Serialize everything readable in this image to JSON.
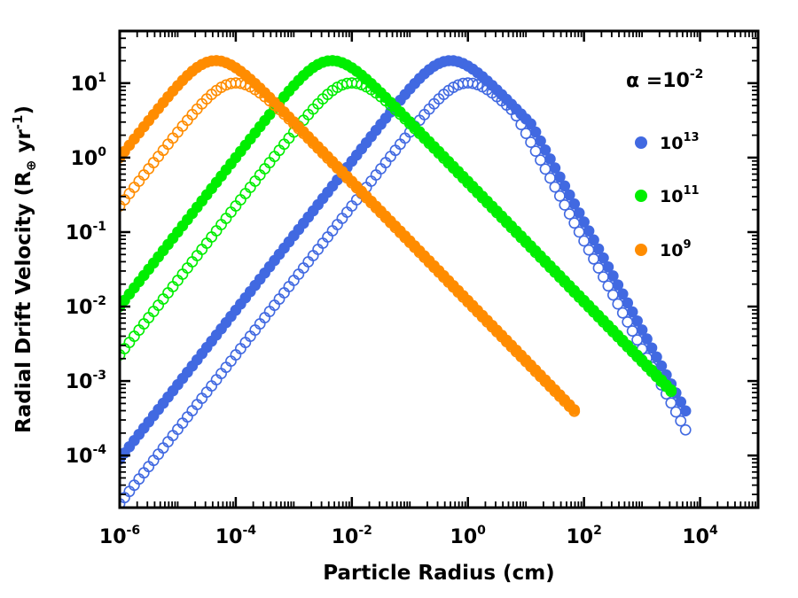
{
  "chart_data": {
    "type": "scatter",
    "xlabel": "Particle Radius (cm)",
    "ylabel_main": "Radial Drift Velocity (R",
    "ylabel_sub": "⊕",
    "ylabel_unit": " yr",
    "ylabel_exp": "-1",
    "ylabel_close": ")",
    "xscale": "log",
    "yscale": "log",
    "xlim_log10": [
      -6,
      5
    ],
    "ylim_log10": [
      -4.7,
      1.7
    ],
    "x_ticks": [
      {
        "base": "10",
        "exp": "-6",
        "log": -6
      },
      {
        "base": "10",
        "exp": "-4",
        "log": -4
      },
      {
        "base": "10",
        "exp": "-2",
        "log": -2
      },
      {
        "base": "10",
        "exp": "0",
        "log": 0
      },
      {
        "base": "10",
        "exp": "2",
        "log": 2
      },
      {
        "base": "10",
        "exp": "4",
        "log": 4
      }
    ],
    "y_ticks": [
      {
        "base": "10",
        "exp": "-4",
        "log": -4
      },
      {
        "base": "10",
        "exp": "-3",
        "log": -3
      },
      {
        "base": "10",
        "exp": "-2",
        "log": -2
      },
      {
        "base": "10",
        "exp": "-1",
        "log": -1
      },
      {
        "base": "10",
        "exp": "0",
        "log": 0
      },
      {
        "base": "10",
        "exp": "1",
        "log": 1
      }
    ],
    "annotation": {
      "prefix": "α =",
      "base": "10",
      "exp": "-2"
    },
    "legend_position": "upper-right",
    "series": [
      {
        "name": "10^13",
        "label_base": "10",
        "label_exp": "13",
        "color": "#4169e1",
        "filled_peak_log_x": -0.35,
        "filled_peak_log_y": 1.3,
        "open_peak_log_x": -0.05,
        "open_peak_log_y": 1.0,
        "cutoff_log_x": 1.1,
        "xmax_log10": 3.75
      },
      {
        "name": "10^11",
        "label_base": "10",
        "label_exp": "11",
        "color": "#00ee00",
        "filled_peak_log_x": -2.4,
        "filled_peak_log_y": 1.3,
        "open_peak_log_x": -2.05,
        "open_peak_log_y": 1.0,
        "cutoff_log_x": null,
        "xmax_log10": 3.55
      },
      {
        "name": "10^9",
        "label_base": "10",
        "label_exp": "9",
        "color": "#ff8c00",
        "filled_peak_log_x": -4.4,
        "filled_peak_log_y": 1.3,
        "open_peak_log_x": -4.05,
        "open_peak_log_y": 1.0,
        "cutoff_log_x": null,
        "xmax_log10": 1.9
      }
    ],
    "slope_log_rising": 1.0,
    "slope_log_falling": -0.8,
    "slope_log_falling_steep": -1.45,
    "points_per_decade": 12
  }
}
